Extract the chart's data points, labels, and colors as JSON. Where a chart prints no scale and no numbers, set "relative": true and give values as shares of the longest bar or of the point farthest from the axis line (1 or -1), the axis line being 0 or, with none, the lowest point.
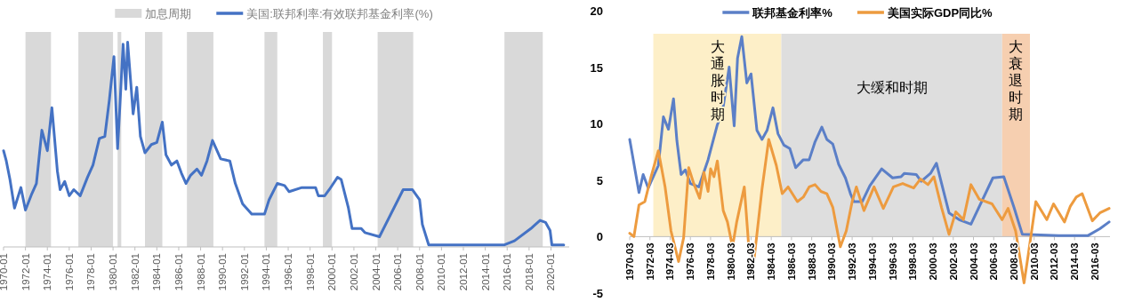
{
  "chart_data": [
    {
      "type": "line",
      "relative": true,
      "legend": "top",
      "xlim": [
        "1970-01",
        "2021-09"
      ],
      "xticks": [
        "1970-01",
        "1972-01",
        "1974-01",
        "1976-01",
        "1978-01",
        "1980-01",
        "1982-01",
        "1984-01",
        "1986-01",
        "1988-01",
        "1990-01",
        "1992-01",
        "1994-01",
        "1996-01",
        "1998-01",
        "2000-01",
        "2002-01",
        "2004-01",
        "2006-01",
        "2008-01",
        "2010-01",
        "2012-01",
        "2014-01",
        "2016-01",
        "2018-01",
        "2020-01"
      ],
      "bands": [
        {
          "axis": "x",
          "from": "1972-01",
          "to": "1974-05",
          "label": "加息周期",
          "color": "#d9d9d9"
        },
        {
          "axis": "x",
          "from": "1976-11",
          "to": "1980-01",
          "color": "#d9d9d9"
        },
        {
          "axis": "x",
          "from": "1980-06",
          "to": "1980-10",
          "color": "#d9d9d9"
        },
        {
          "axis": "x",
          "from": "1982-12",
          "to": "1984-07",
          "color": "#d9d9d9"
        },
        {
          "axis": "x",
          "from": "1986-10",
          "to": "1989-03",
          "color": "#d9d9d9"
        },
        {
          "axis": "x",
          "from": "1993-11",
          "to": "1995-01",
          "color": "#d9d9d9"
        },
        {
          "axis": "x",
          "from": "1999-03",
          "to": "2000-01",
          "color": "#d9d9d9"
        },
        {
          "axis": "x",
          "from": "2004-03",
          "to": "2007-06",
          "color": "#d9d9d9"
        },
        {
          "axis": "x",
          "from": "2015-10",
          "to": "2019-04",
          "color": "#d9d9d9"
        }
      ],
      "series": [
        {
          "name": "美国:联邦利率:有效联邦基金利率(%)",
          "color": "#4472c4",
          "x": [
            "1970-01",
            "1970-04",
            "1970-08",
            "1971-01",
            "1971-08",
            "1972-01",
            "1972-08",
            "1973-01",
            "1973-07",
            "1974-01",
            "1974-06",
            "1974-12",
            "1975-03",
            "1975-08",
            "1976-01",
            "1976-06",
            "1977-01",
            "1977-09",
            "1978-03",
            "1978-10",
            "1979-04",
            "1979-09",
            "1980-02",
            "1980-06",
            "1980-09",
            "1980-12",
            "1981-03",
            "1981-05",
            "1981-09",
            "1981-11",
            "1982-03",
            "1982-07",
            "1982-12",
            "1983-07",
            "1984-01",
            "1984-07",
            "1984-11",
            "1985-05",
            "1985-11",
            "1986-04",
            "1986-09",
            "1987-02",
            "1987-09",
            "1988-02",
            "1988-08",
            "1989-02",
            "1989-11",
            "1990-09",
            "1991-03",
            "1991-11",
            "1992-09",
            "1993-11",
            "1994-04",
            "1995-01",
            "1995-09",
            "1996-02",
            "1997-04",
            "1998-07",
            "1998-10",
            "1999-05",
            "1999-10",
            "2000-07",
            "2000-11",
            "2001-07",
            "2001-11",
            "2002-09",
            "2003-01",
            "2004-05",
            "2006-07",
            "2007-05",
            "2008-01",
            "2008-04",
            "2008-11",
            "2011-12",
            "2015-10",
            "2016-09",
            "2018-03",
            "2019-01",
            "2019-07",
            "2019-12",
            "2020-02",
            "2021-03"
          ],
          "values": [
            0.47,
            0.42,
            0.33,
            0.19,
            0.29,
            0.18,
            0.26,
            0.31,
            0.57,
            0.47,
            0.68,
            0.37,
            0.28,
            0.32,
            0.25,
            0.28,
            0.25,
            0.34,
            0.4,
            0.53,
            0.54,
            0.72,
            0.93,
            0.48,
            0.73,
            0.99,
            0.77,
            1,
            0.77,
            0.65,
            0.78,
            0.54,
            0.46,
            0.5,
            0.51,
            0.61,
            0.45,
            0.4,
            0.42,
            0.36,
            0.31,
            0.35,
            0.38,
            0.35,
            0.42,
            0.52,
            0.43,
            0.42,
            0.31,
            0.21,
            0.16,
            0.16,
            0.23,
            0.31,
            0.3,
            0.27,
            0.29,
            0.29,
            0.25,
            0.25,
            0.28,
            0.34,
            0.33,
            0.19,
            0.09,
            0.09,
            0.07,
            0.05,
            0.28,
            0.28,
            0.23,
            0.11,
            0.01,
            0.01,
            0.01,
            0.03,
            0.09,
            0.13,
            0.12,
            0.08,
            0.01,
            0.01
          ]
        }
      ]
    },
    {
      "type": "line",
      "legend": "top",
      "ylim": [
        -5,
        20
      ],
      "yticks": [
        -5,
        0,
        5,
        10,
        15,
        20
      ],
      "xlim": [
        "1970-03",
        "2017-09"
      ],
      "xticks": [
        "1970-03",
        "1972-03",
        "1974-03",
        "1976-03",
        "1978-03",
        "1980-03",
        "1982-03",
        "1984-03",
        "1986-03",
        "1988-03",
        "1990-03",
        "1992-03",
        "1994-03",
        "1996-03",
        "1998-03",
        "2000-03",
        "2002-03",
        "2004-03",
        "2006-03",
        "2008-03",
        "2010-03",
        "2012-03",
        "2014-03",
        "2016-03"
      ],
      "bands": [
        {
          "axis": "x",
          "from": "1972-07",
          "to": "1985-03",
          "label": "大通胀时期",
          "color": "#fdefc8"
        },
        {
          "axis": "x",
          "from": "1985-03",
          "to": "2007-01",
          "label": "大缓和时期",
          "color": "#dedede"
        },
        {
          "axis": "x",
          "from": "2007-01",
          "to": "2009-10",
          "label": "大衰退时期",
          "color": "#f6cfb0"
        }
      ],
      "series": [
        {
          "name": "联邦基金利率%",
          "color": "#5b7fc7",
          "x": [
            "1970-03",
            "1971-02",
            "1971-07",
            "1972-01",
            "1973-01",
            "1973-07",
            "1974-01",
            "1974-07",
            "1974-11",
            "1975-04",
            "1975-09",
            "1976-03",
            "1977-01",
            "1977-12",
            "1978-11",
            "1979-05",
            "1980-01",
            "1980-07",
            "1980-11",
            "1981-04",
            "1981-10",
            "1982-03",
            "1982-10",
            "1983-04",
            "1983-10",
            "1984-05",
            "1984-11",
            "1985-06",
            "1986-01",
            "1986-08",
            "1987-05",
            "1987-12",
            "1988-07",
            "1989-03",
            "1989-09",
            "1990-04",
            "1990-11",
            "1991-07",
            "1992-01",
            "1992-05",
            "1993-03",
            "1993-12",
            "1995-02",
            "1996-03",
            "1997-01",
            "1997-05",
            "1998-07",
            "1999-01",
            "1999-12",
            "2000-07",
            "2001-10",
            "2002-10",
            "2003-12",
            "2006-02",
            "2007-03",
            "2008-03",
            "2009-01",
            "2012-08",
            "2015-07",
            "2016-09",
            "2017-08"
          ],
          "values": [
            8.6,
            3.9,
            5.5,
            4.3,
            6.3,
            10.6,
            9.5,
            12.2,
            8.5,
            5.5,
            5.9,
            4.7,
            4.4,
            6.8,
            9.9,
            11.0,
            15.0,
            9.8,
            15.8,
            17.7,
            13.6,
            14.4,
            9.4,
            8.6,
            9.4,
            11.4,
            9.1,
            8.1,
            7.8,
            6.1,
            6.8,
            6.8,
            8.4,
            9.7,
            8.6,
            8.2,
            6.4,
            5.2,
            3.8,
            3.1,
            3.1,
            4.5,
            6.0,
            5.2,
            5.3,
            5.6,
            5.5,
            4.9,
            5.6,
            6.5,
            2.1,
            1.5,
            1.1,
            5.2,
            5.3,
            2.6,
            0.2,
            0.1,
            0.1,
            0.7,
            1.3
          ]
        },
        {
          "name": "美国实际GDP同比%",
          "color": "#ed9b3f",
          "x": [
            "1970-03",
            "1970-08",
            "1971-02",
            "1971-09",
            "1972-04",
            "1973-01",
            "1973-09",
            "1974-04",
            "1975-01",
            "1975-07",
            "1976-01",
            "1976-07",
            "1977-02",
            "1977-07",
            "1977-12",
            "1978-03",
            "1978-07",
            "1978-11",
            "1979-06",
            "1979-11",
            "1980-05",
            "1980-10",
            "1981-07",
            "1981-12",
            "1982-06",
            "1983-04",
            "1983-12",
            "1984-09",
            "1985-04",
            "1985-11",
            "1986-10",
            "1987-05",
            "1987-12",
            "1988-07",
            "1989-02",
            "1989-09",
            "1990-04",
            "1991-01",
            "1991-08",
            "1992-03",
            "1992-08",
            "1993-05",
            "1994-05",
            "1995-04",
            "1996-04",
            "1997-03",
            "1998-04",
            "1998-12",
            "1999-09",
            "2000-04",
            "2001-01",
            "2001-10",
            "2002-06",
            "2003-03",
            "2003-12",
            "2004-10",
            "2006-01",
            "2007-01",
            "2007-08",
            "2008-05",
            "2009-03",
            "2009-08",
            "2010-05",
            "2011-06",
            "2012-02",
            "2013-03",
            "2013-10",
            "2014-05",
            "2014-12",
            "2015-12",
            "2016-09",
            "2017-08"
          ],
          "values": [
            0.3,
            0,
            2.8,
            3.1,
            5.2,
            7.6,
            4.4,
            0.5,
            -2.2,
            -0.1,
            6.1,
            4.7,
            3.4,
            5.7,
            4.0,
            6.0,
            5.3,
            6.7,
            2.3,
            1.3,
            -0.9,
            1.3,
            4.4,
            -0.6,
            -2.4,
            4.2,
            8.6,
            6.3,
            3.8,
            4.4,
            3.1,
            3.5,
            4.4,
            4.6,
            4.0,
            3.8,
            2.6,
            -0.9,
            0.5,
            3.1,
            4.4,
            2.3,
            4.4,
            2.5,
            4.4,
            4.7,
            4.3,
            5.1,
            4.6,
            5.3,
            2.6,
            0.2,
            2.2,
            1.5,
            4.6,
            3.3,
            2.9,
            1.5,
            2.5,
            0.5,
            -4.1,
            -1.6,
            3.1,
            1.5,
            2.9,
            1.3,
            2.7,
            3.5,
            3.8,
            1.4,
            2.1,
            2.5
          ]
        }
      ]
    }
  ]
}
